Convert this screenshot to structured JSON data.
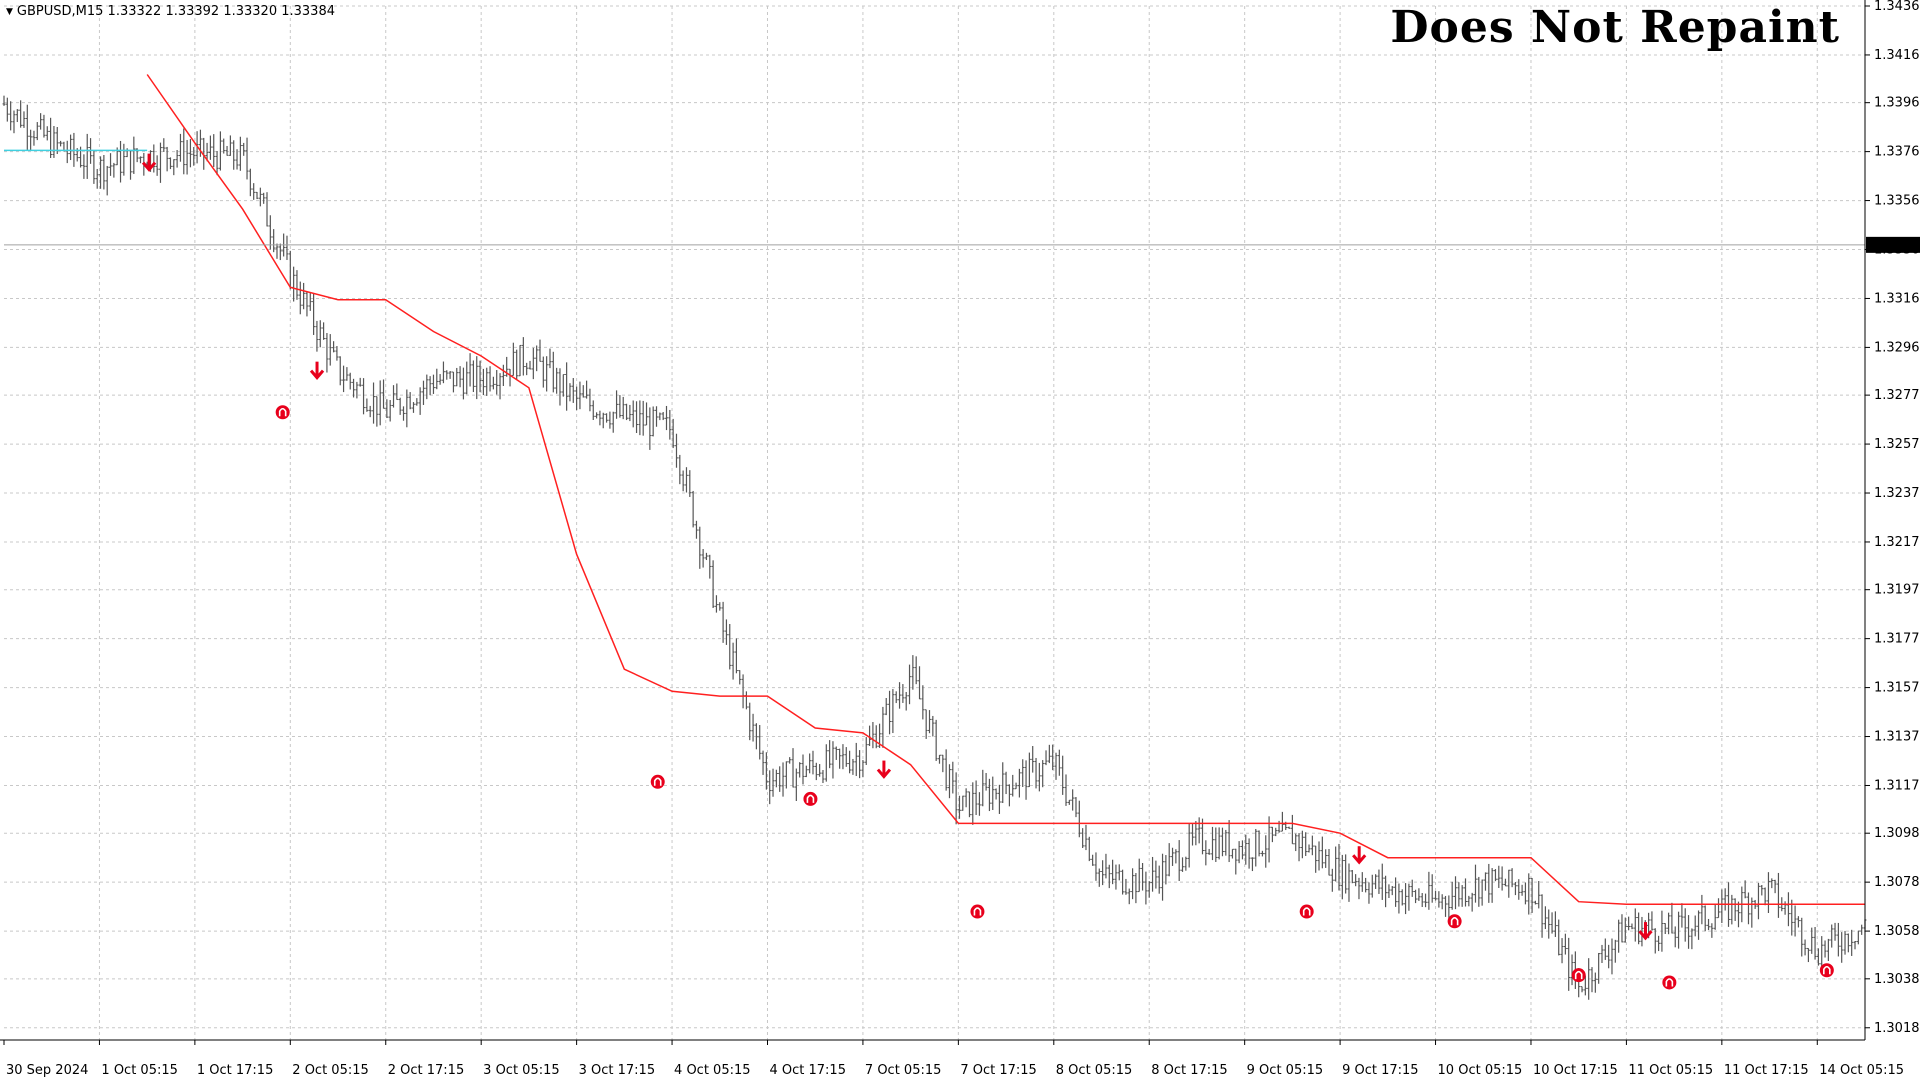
{
  "header": {
    "symbol_info": "GBPUSD,M15  1.33322 1.33392 1.33320 1.33384",
    "overlay_title": "Does Not Repaint",
    "dropdown_glyph": "▼"
  },
  "colors": {
    "background": "#ffffff",
    "grid": "#c8c8c8",
    "candles": "#555555",
    "trailing_stop": "#ff2020",
    "initial_line": "#40d0e0",
    "signal_up": "#e8001c",
    "signal_down": "#e8001c",
    "price_tag_bg": "#000000",
    "price_tag_text": "#ffffff"
  },
  "chart_data": {
    "type": "line",
    "symbol": "GBPUSD",
    "timeframe": "M15",
    "title": "",
    "xlabel": "",
    "ylabel": "",
    "ylim": [
      1.30135,
      1.3436
    ],
    "grid": true,
    "y_ticks": [
      "1.34360",
      "1.34160",
      "1.33965",
      "1.33765",
      "1.33565",
      "1.33365",
      "1.33165",
      "1.32965",
      "1.32770",
      "1.32570",
      "1.32370",
      "1.32170",
      "1.31975",
      "1.31775",
      "1.31575",
      "1.31375",
      "1.31175",
      "1.30980",
      "1.30780",
      "1.30580",
      "1.30385",
      "1.30185"
    ],
    "x_ticks": [
      "30 Sep 2024",
      "1 Oct 05:15",
      "1 Oct 17:15",
      "2 Oct 05:15",
      "2 Oct 17:15",
      "3 Oct 05:15",
      "3 Oct 17:15",
      "4 Oct 05:15",
      "4 Oct 17:15",
      "7 Oct 05:15",
      "7 Oct 17:15",
      "8 Oct 05:15",
      "8 Oct 17:15",
      "9 Oct 05:15",
      "9 Oct 17:15",
      "10 Oct 05:15",
      "10 Oct 17:15",
      "11 Oct 05:15",
      "11 Oct 17:15",
      "14 Oct 05:15"
    ],
    "current_price": "1.33384",
    "price_series": {
      "name": "",
      "x": [
        0,
        0.5,
        1,
        1.5,
        2,
        2.5,
        3,
        3.5,
        4,
        4.5,
        5,
        5.5,
        6,
        6.5,
        7,
        7.5,
        8,
        8.5,
        9,
        9.5,
        10,
        10.5,
        11,
        11.5,
        12,
        12.5,
        13,
        13.5,
        14,
        14.5,
        15,
        15.5,
        16,
        16.5,
        17,
        17.5,
        18,
        18.5,
        19,
        19.5
      ],
      "values": [
        1.3396,
        1.338,
        1.337,
        1.3375,
        1.3376,
        1.3374,
        1.3326,
        1.3287,
        1.327,
        1.3283,
        1.3284,
        1.3293,
        1.3275,
        1.3268,
        1.3263,
        1.3185,
        1.312,
        1.3125,
        1.313,
        1.3163,
        1.3108,
        1.3118,
        1.3127,
        1.308,
        1.3078,
        1.3095,
        1.3092,
        1.3097,
        1.3082,
        1.3075,
        1.307,
        1.3078,
        1.3076,
        1.3035,
        1.306,
        1.3058,
        1.3066,
        1.3075,
        1.305,
        1.306
      ]
    },
    "trailing_stop": {
      "name": "",
      "x": [
        1.5,
        2,
        2.5,
        3,
        3.5,
        4,
        4.5,
        5,
        5.5,
        6,
        6.5,
        7,
        7.5,
        8,
        8.5,
        9,
        9.5,
        10,
        10.5,
        11,
        11.5,
        12,
        12.5,
        13,
        13.5,
        14,
        14.5,
        15,
        15.5,
        16,
        16.5,
        17,
        17.5,
        18,
        18.5,
        19,
        19.5
      ],
      "values": [
        1.3408,
        1.338,
        1.3353,
        1.3321,
        1.3316,
        1.3316,
        1.3303,
        1.3293,
        1.328,
        1.3212,
        1.3165,
        1.3156,
        1.3154,
        1.3154,
        1.3141,
        1.3139,
        1.3126,
        1.3102,
        1.3102,
        1.3102,
        1.3102,
        1.3102,
        1.3102,
        1.3102,
        1.3102,
        1.3098,
        1.3088,
        1.3088,
        1.3088,
        1.3088,
        1.307,
        1.3069,
        1.3069,
        1.3069,
        1.3069,
        1.3069,
        1.3069
      ]
    },
    "initial_line": {
      "x": [
        0,
        1.5
      ],
      "values": [
        1.3377,
        1.3377
      ]
    },
    "signals": [
      {
        "type": "down",
        "x": 1.52,
        "value": 1.3372
      },
      {
        "type": "down",
        "x": 3.28,
        "value": 1.3287
      },
      {
        "type": "up",
        "x": 2.92,
        "value": 1.327
      },
      {
        "type": "up",
        "x": 6.85,
        "value": 1.3119
      },
      {
        "type": "down",
        "x": 9.22,
        "value": 1.3124
      },
      {
        "type": "up",
        "x": 8.45,
        "value": 1.3112
      },
      {
        "type": "up",
        "x": 10.2,
        "value": 1.3066
      },
      {
        "type": "up",
        "x": 13.65,
        "value": 1.3066
      },
      {
        "type": "down",
        "x": 14.2,
        "value": 1.3089
      },
      {
        "type": "up",
        "x": 15.2,
        "value": 1.3062
      },
      {
        "type": "up",
        "x": 16.5,
        "value": 1.304
      },
      {
        "type": "down",
        "x": 17.2,
        "value": 1.3058
      },
      {
        "type": "up",
        "x": 17.45,
        "value": 1.3037
      },
      {
        "type": "up",
        "x": 19.1,
        "value": 1.3042
      }
    ]
  }
}
